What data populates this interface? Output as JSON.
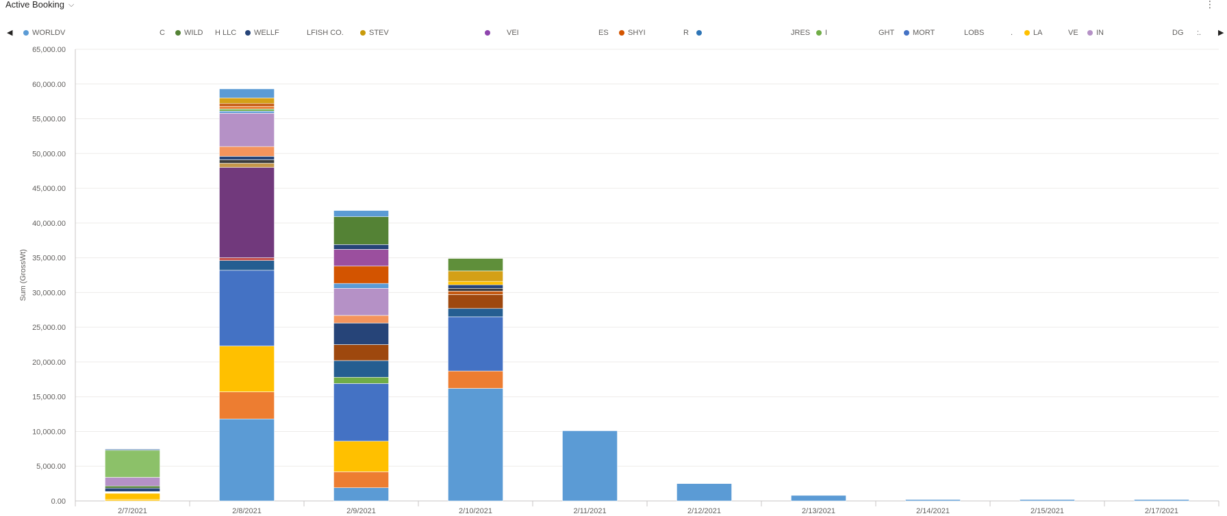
{
  "header": {
    "title": "Active Booking",
    "caret": "⌵",
    "more": "⋮"
  },
  "legend": {
    "prev_icon": "◀",
    "next_icon": "▶",
    "items": [
      {
        "label": "WORLDV",
        "color": "#5b9bd5"
      },
      {
        "label": "C",
        "color": ""
      },
      {
        "label": "WILD",
        "color": "#548235"
      },
      {
        "label": "H LLC",
        "color": ""
      },
      {
        "label": "WELLF",
        "color": "#264478"
      },
      {
        "label": "LFISH CO.",
        "color": ""
      },
      {
        "label": "STEV",
        "color": "#c89a0a"
      },
      {
        "label": "",
        "color": "#8e44ad"
      },
      {
        "label": "VEI",
        "color": ""
      },
      {
        "label": "ES",
        "color": ""
      },
      {
        "label": "SHYI",
        "color": "#d35400"
      },
      {
        "label": "R",
        "color": ""
      },
      {
        "label": "",
        "color": "#2e75b6"
      },
      {
        "label": "JRES",
        "color": ""
      },
      {
        "label": "I",
        "color": "#70ad47"
      },
      {
        "label": "GHT",
        "color": ""
      },
      {
        "label": "MORT",
        "color": "#4472c4"
      },
      {
        "label": "LOBS",
        "color": ""
      },
      {
        "label": ".",
        "color": ""
      },
      {
        "label": "LA",
        "color": "#ffc000"
      },
      {
        "label": "VE",
        "color": ""
      },
      {
        "label": "IN",
        "color": "#b591c6"
      },
      {
        "label": "DG",
        "color": ""
      },
      {
        "label": ":.",
        "color": ""
      }
    ]
  },
  "chart_data": {
    "type": "bar",
    "stacked": true,
    "ylabel": "Sum (GrossWt)",
    "ylim": [
      0,
      65000
    ],
    "ytick_step": 5000,
    "yticks": [
      "0.00",
      "5,000.00",
      "10,000.00",
      "15,000.00",
      "20,000.00",
      "25,000.00",
      "30,000.00",
      "35,000.00",
      "40,000.00",
      "45,000.00",
      "50,000.00",
      "55,000.00",
      "60,000.00",
      "65,000.00"
    ],
    "categories": [
      "2/7/2021",
      "2/8/2021",
      "2/9/2021",
      "2/10/2021",
      "2/11/2021",
      "2/12/2021",
      "2/13/2021",
      "2/14/2021",
      "2/15/2021",
      "2/17/2021"
    ],
    "grid": true,
    "stacks": [
      [
        {
          "value": 200,
          "color": "#ffc000"
        },
        {
          "value": 900,
          "color": "#ffc000"
        },
        {
          "value": 250,
          "color": "#ffffff"
        },
        {
          "value": 500,
          "color": "#264478"
        },
        {
          "value": 300,
          "color": "#548235"
        },
        {
          "value": 1250,
          "color": "#b591c6"
        },
        {
          "value": 3900,
          "color": "#8cc169"
        },
        {
          "value": 150,
          "color": "#3a6ea5"
        }
      ],
      [
        {
          "value": 11800,
          "color": "#5b9bd5"
        },
        {
          "value": 3900,
          "color": "#ed7d31"
        },
        {
          "value": 6600,
          "color": "#ffc000"
        },
        {
          "value": 10900,
          "color": "#4472c4"
        },
        {
          "value": 1400,
          "color": "#255e91"
        },
        {
          "value": 400,
          "color": "#c5504b"
        },
        {
          "value": 13000,
          "color": "#71397c"
        },
        {
          "value": 600,
          "color": "#c5974a"
        },
        {
          "value": 500,
          "color": "#3b3b3b"
        },
        {
          "value": 500,
          "color": "#264478"
        },
        {
          "value": 1400,
          "color": "#f4945c"
        },
        {
          "value": 4800,
          "color": "#b591c6"
        },
        {
          "value": 300,
          "color": "#5b9bd5"
        },
        {
          "value": 300,
          "color": "#70ad47"
        },
        {
          "value": 400,
          "color": "#e8843d"
        },
        {
          "value": 400,
          "color": "#c55a11"
        },
        {
          "value": 800,
          "color": "#d4a017"
        },
        {
          "value": 1300,
          "color": "#5b9bd5"
        }
      ],
      [
        {
          "value": 1900,
          "color": "#5b9bd5"
        },
        {
          "value": 2300,
          "color": "#ed7d31"
        },
        {
          "value": 4400,
          "color": "#ffc000"
        },
        {
          "value": 8300,
          "color": "#4472c4"
        },
        {
          "value": 900,
          "color": "#70ad47"
        },
        {
          "value": 2400,
          "color": "#255e91"
        },
        {
          "value": 2300,
          "color": "#9e480e"
        },
        {
          "value": 3100,
          "color": "#264478"
        },
        {
          "value": 1100,
          "color": "#f4945c"
        },
        {
          "value": 3900,
          "color": "#b591c6"
        },
        {
          "value": 700,
          "color": "#5b9bd5"
        },
        {
          "value": 2500,
          "color": "#d35400"
        },
        {
          "value": 2400,
          "color": "#9b4f9e"
        },
        {
          "value": 700,
          "color": "#264478"
        },
        {
          "value": 4000,
          "color": "#548235"
        },
        {
          "value": 900,
          "color": "#5b9bd5"
        }
      ],
      [
        {
          "value": 16200,
          "color": "#5b9bd5"
        },
        {
          "value": 2500,
          "color": "#ed7d31"
        },
        {
          "value": 7800,
          "color": "#4472c4"
        },
        {
          "value": 1200,
          "color": "#255e91"
        },
        {
          "value": 2000,
          "color": "#9e480e"
        },
        {
          "value": 500,
          "color": "#c55a11"
        },
        {
          "value": 400,
          "color": "#3b3b3b"
        },
        {
          "value": 500,
          "color": "#264478"
        },
        {
          "value": 500,
          "color": "#ffc000"
        },
        {
          "value": 1500,
          "color": "#d4a017"
        },
        {
          "value": 1800,
          "color": "#5f8f3a"
        }
      ],
      [
        {
          "value": 10100,
          "color": "#5b9bd5"
        }
      ],
      [
        {
          "value": 2500,
          "color": "#5b9bd5"
        }
      ],
      [
        {
          "value": 800,
          "color": "#5b9bd5"
        }
      ],
      [
        {
          "value": 200,
          "color": "#5b9bd5"
        }
      ],
      [
        {
          "value": 200,
          "color": "#5b9bd5"
        }
      ],
      [
        {
          "value": 200,
          "color": "#5b9bd5"
        }
      ]
    ]
  }
}
